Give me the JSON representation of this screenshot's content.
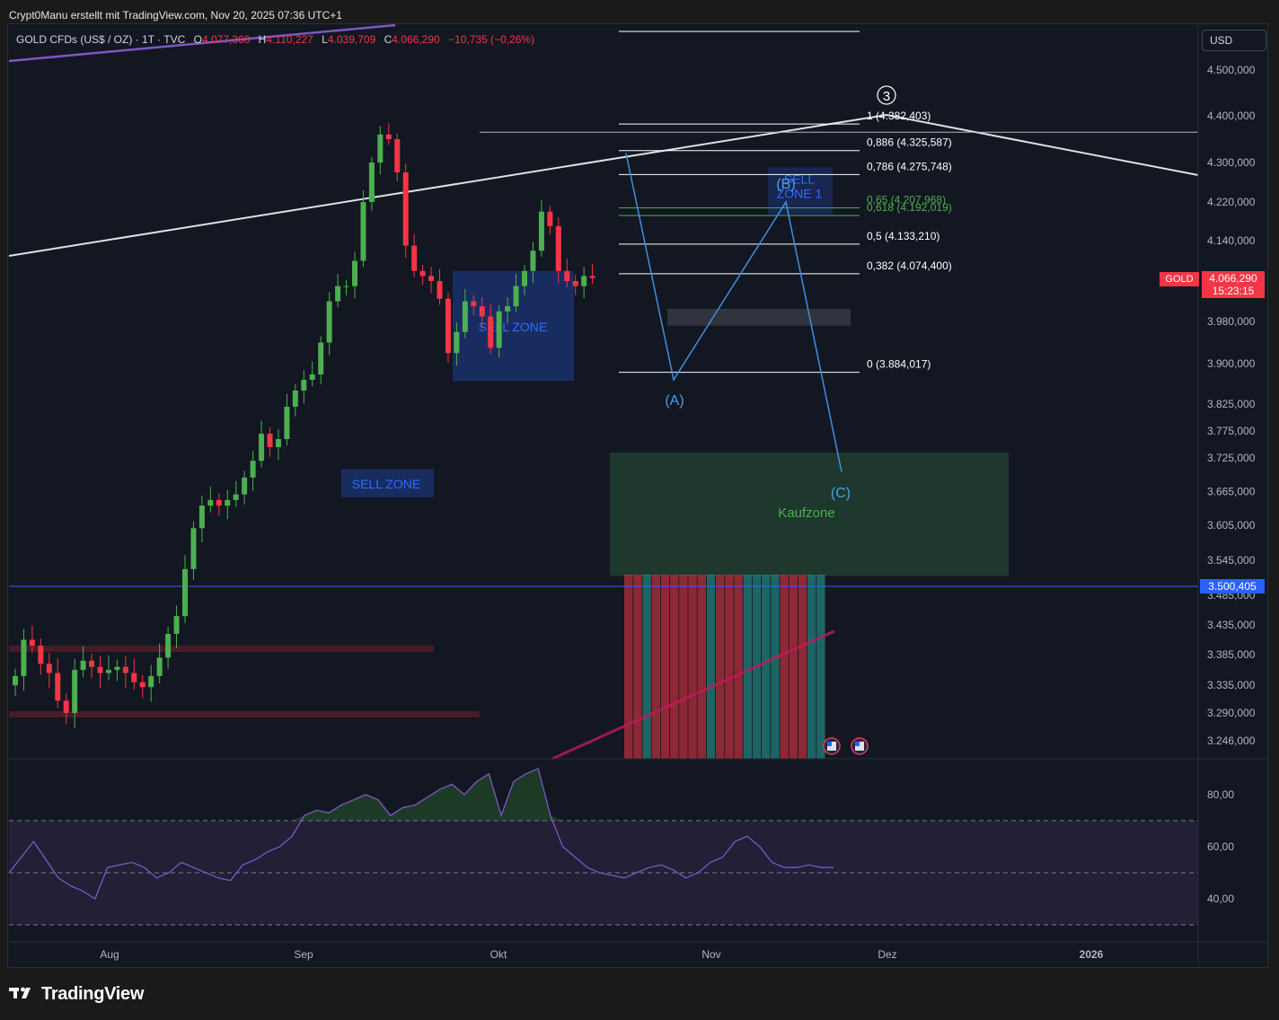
{
  "header": {
    "author_line": "Crypt0Manu erstellt mit TradingView.com, Nov 20, 2025 07:36 UTC+1"
  },
  "legend": {
    "symbol": "GOLD CFDs (US$ / OZ) · 1T · TVC",
    "open_label": "O",
    "open": "4.077,360",
    "high_label": "H",
    "high": "4.110,227",
    "low_label": "L",
    "low": "4.039,709",
    "close_label": "C",
    "close": "4.066,290",
    "change": "−10,735 (−0,26%)"
  },
  "currency_button": "USD",
  "last_price": {
    "symbol_tag": "GOLD",
    "price": "4.066,290",
    "countdown": "15:23:15"
  },
  "horizontal_line_label": "3.500,405",
  "colors": {
    "background": "#131722",
    "up": "#4caf50",
    "down": "#f23645",
    "fib_line": "#ffffff",
    "fib_green": "#4caf50",
    "wave_line": "#3f8ee0",
    "sell_zone": "#1e3a8a",
    "buy_zone": "#1f3a2e",
    "rsi_line": "#7e57c2"
  },
  "chart_data": [
    {
      "type": "candlestick",
      "symbol": "GOLD CFDs (US$ / OZ)",
      "y_axis_ticks": [
        "4.500,000",
        "4.400,000",
        "4.300,000",
        "4.220,000",
        "4.140,000",
        "3.980,000",
        "3.900,000",
        "3.825,000",
        "3.775,000",
        "3.725,000",
        "3.665,000",
        "3.605,000",
        "3.545,000",
        "3.485,000",
        "3.435,000",
        "3.385,000",
        "3.335,000",
        "3.290,000",
        "3.246,000"
      ],
      "x_axis_ticks": [
        "Aug",
        "Sep",
        "Okt",
        "Nov",
        "Dez",
        "2026"
      ],
      "ylim": [
        3215,
        4560
      ],
      "close_values": [
        3350,
        3410,
        3400,
        3370,
        3355,
        3310,
        3290,
        3360,
        3375,
        3365,
        3355,
        3360,
        3365,
        3355,
        3340,
        3332,
        3350,
        3380,
        3420,
        3450,
        3530,
        3600,
        3640,
        3650,
        3640,
        3650,
        3660,
        3690,
        3720,
        3770,
        3745,
        3760,
        3820,
        3850,
        3870,
        3880,
        3940,
        4020,
        4050,
        4050,
        4100,
        4220,
        4300,
        4360,
        4350,
        4280,
        4130,
        4080,
        4070,
        4060,
        4025,
        3920,
        3960,
        4020,
        4010,
        3990,
        3930,
        4000,
        4010,
        4050,
        4080,
        4120,
        4200,
        4170,
        4080,
        4060,
        4050,
        4070,
        4066
      ],
      "fib_levels": [
        {
          "label": "0 (3.884,017)",
          "value": 3884.017
        },
        {
          "label": "0,382 (4.074,400)",
          "value": 4074.4
        },
        {
          "label": "0,5 (4.133,210)",
          "value": 4133.21
        },
        {
          "label": "0,618 (4.192,019)",
          "value": 4192.019
        },
        {
          "label": "0,65 (4.207,968)",
          "value": 4207.968
        },
        {
          "label": "0,786 (4.275,748)",
          "value": 4275.748
        },
        {
          "label": "0,886 (4.325,587)",
          "value": 4325.587
        },
        {
          "label": "1 (4.382,403)",
          "value": 4382.403
        }
      ],
      "horizontal_line": 3500.405,
      "zones": [
        {
          "label": "SELL ZONE",
          "kind": "sell"
        },
        {
          "label": "SELL ZONE",
          "kind": "sell"
        },
        {
          "label": "SELL ZONE 1",
          "kind": "sell"
        },
        {
          "label": "Kaufzone",
          "kind": "buy"
        }
      ],
      "wave_labels": [
        "(A)",
        "(B)",
        "(C)",
        "3"
      ],
      "wave_points": [
        {
          "label": "",
          "value": 4320
        },
        {
          "label": "(A)",
          "value": 3870
        },
        {
          "label": "(B)",
          "value": 4220
        },
        {
          "label": "(C)",
          "value": 3700
        }
      ]
    },
    {
      "type": "line",
      "name": "RSI",
      "y_axis_ticks": [
        "80,00",
        "60,00",
        "40,00"
      ],
      "ylim": [
        25,
        95
      ],
      "bands": [
        70,
        50,
        30
      ],
      "values": [
        50,
        56,
        62,
        55,
        48,
        45,
        43,
        40,
        52,
        53,
        54,
        52,
        48,
        50,
        54,
        52,
        50,
        48,
        47,
        53,
        55,
        58,
        60,
        64,
        72,
        74,
        73,
        76,
        78,
        80,
        78,
        72,
        75,
        76,
        79,
        82,
        84,
        80,
        85,
        88,
        72,
        85,
        88,
        90,
        72,
        60,
        56,
        52,
        50,
        49,
        48,
        50,
        52,
        53,
        51,
        48,
        50,
        54,
        56,
        62,
        64,
        60,
        54,
        52,
        52,
        53,
        52,
        52
      ]
    }
  ]
}
